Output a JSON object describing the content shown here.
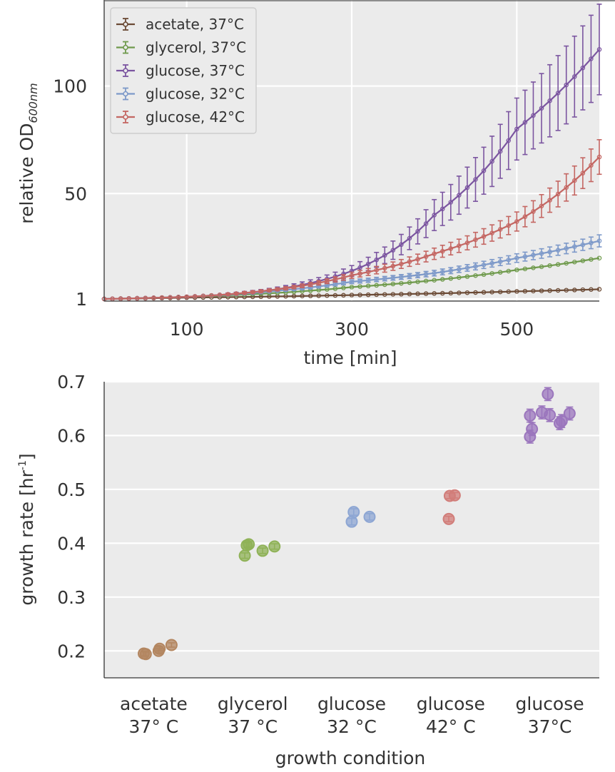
{
  "chart_data": [
    {
      "type": "line",
      "title": "",
      "xlabel": "time [min]",
      "ylabel_main": "relative OD",
      "ylabel_sub": "600nm",
      "xlim": [
        0,
        600
      ],
      "ylim": [
        0,
        140
      ],
      "xticks": [
        "100",
        "300",
        "500"
      ],
      "xtick_values": [
        100,
        300,
        500
      ],
      "yticks": [
        "1",
        "50",
        "100"
      ],
      "ytick_values": [
        1,
        50,
        100
      ],
      "grid": true,
      "legend_position": "top-left",
      "x_start": 0,
      "x_step": 10,
      "series": [
        {
          "name": "acetate, 37°C",
          "color": "#6b4a35",
          "knots": [
            [
              0,
              1
            ],
            [
              100,
              1.6
            ],
            [
              300,
              2.8
            ],
            [
              500,
              4.5
            ],
            [
              600,
              5.5
            ]
          ],
          "err_frac": 0.05
        },
        {
          "name": "glycerol, 37°C",
          "color": "#6f9a4c",
          "knots": [
            [
              0,
              1
            ],
            [
              100,
              2
            ],
            [
              300,
              6.5
            ],
            [
              500,
              14.5
            ],
            [
              600,
              20
            ]
          ],
          "err_frac": 0.05
        },
        {
          "name": "glucose, 37°C",
          "color": "#7b55a0",
          "knots": [
            [
              0,
              1
            ],
            [
              100,
              2
            ],
            [
              200,
              5
            ],
            [
              300,
              14
            ],
            [
              400,
              40
            ],
            [
              500,
              80
            ],
            [
              600,
              117
            ]
          ],
          "err_frac": 0.18
        },
        {
          "name": "glucose, 32°C",
          "color": "#7d99c9",
          "knots": [
            [
              0,
              1
            ],
            [
              100,
              2
            ],
            [
              200,
              4.5
            ],
            [
              300,
              9
            ],
            [
              400,
              13
            ],
            [
              500,
              20
            ],
            [
              600,
              28
            ]
          ],
          "err_frac": 0.1
        },
        {
          "name": "glucose, 42°C",
          "color": "#c46662",
          "knots": [
            [
              0,
              1
            ],
            [
              100,
              2
            ],
            [
              200,
              5
            ],
            [
              300,
              12
            ],
            [
              400,
              22
            ],
            [
              500,
              37
            ],
            [
              600,
              67
            ]
          ],
          "err_frac": 0.12
        }
      ]
    },
    {
      "type": "scatter",
      "title": "",
      "xlabel": "growth condition",
      "ylabel": "growth rate [hr",
      "ylabel_sup": "-1",
      "ylabel_close": "]",
      "ylim": [
        0.15,
        0.7
      ],
      "yticks": [
        "0.2",
        "0.3",
        "0.4",
        "0.5",
        "0.6",
        "0.7"
      ],
      "ytick_values": [
        0.2,
        0.3,
        0.4,
        0.5,
        0.6,
        0.7
      ],
      "grid": true,
      "categories": [
        {
          "line1": "acetate",
          "line2": "37° C",
          "color": "#b38660",
          "points": [
            [
              -0.1,
              0.195
            ],
            [
              -0.08,
              0.194
            ],
            [
              0.05,
              0.2
            ],
            [
              0.06,
              0.204
            ],
            [
              0.18,
              0.211
            ]
          ],
          "err": 0.004
        },
        {
          "line1": "glycerol",
          "line2": "37 °C",
          "color": "#8fb257",
          "points": [
            [
              -0.08,
              0.377
            ],
            [
              -0.06,
              0.396
            ],
            [
              -0.04,
              0.398
            ],
            [
              0.1,
              0.386
            ],
            [
              0.22,
              0.394
            ]
          ],
          "err": 0.005
        },
        {
          "line1": "glucose",
          "line2": "32 °C",
          "color": "#8da6d3",
          "points": [
            [
              0,
              0.44
            ],
            [
              0.02,
              0.458
            ],
            [
              0.18,
              0.449
            ]
          ],
          "err": 0.006
        },
        {
          "line1": "glucose",
          "line2": "42° C",
          "color": "#d17d79",
          "points": [
            [
              -0.02,
              0.445
            ],
            [
              -0.01,
              0.488
            ],
            [
              0.04,
              0.489
            ]
          ],
          "err": 0.005
        },
        {
          "line1": "glucose",
          "line2": "37°C",
          "color": "#9b76bd",
          "points": [
            [
              -0.2,
              0.637
            ],
            [
              -0.18,
              0.612
            ],
            [
              -0.2,
              0.598
            ],
            [
              -0.08,
              0.643
            ],
            [
              -0.02,
              0.677
            ],
            [
              0.0,
              0.638
            ],
            [
              0.1,
              0.623
            ],
            [
              0.12,
              0.627
            ],
            [
              0.2,
              0.641
            ]
          ],
          "err": 0.012
        }
      ]
    }
  ]
}
